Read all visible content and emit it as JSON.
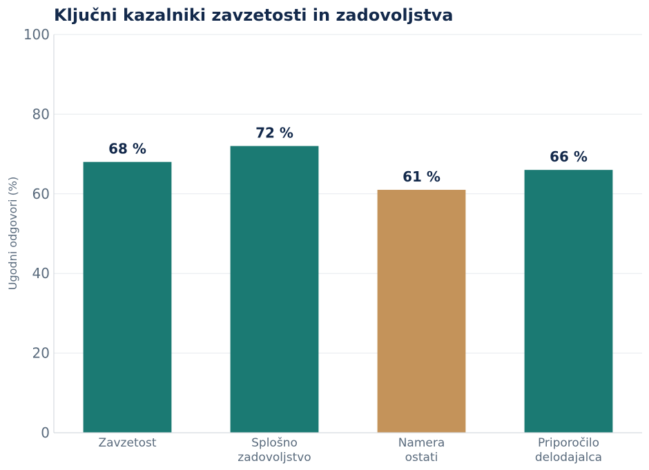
{
  "chart_data": {
    "type": "bar",
    "title": "Ključni kazalniki zavzetosti in zadovoljstva",
    "xlabel": "",
    "ylabel": "Ugodni odgovori (%)",
    "ylim": [
      0,
      100
    ],
    "yticks": [
      0,
      20,
      40,
      60,
      80,
      100
    ],
    "grid": true,
    "categories": [
      [
        "Zavzetost"
      ],
      [
        "Splošno",
        "zadovoljstvo"
      ],
      [
        "Namera",
        "ostati"
      ],
      [
        "Priporočilo",
        "delodajalca"
      ]
    ],
    "values": [
      68,
      72,
      61,
      66
    ],
    "data_labels": [
      "68 %",
      "72 %",
      "61 %",
      "66 %"
    ],
    "colors": [
      "#1b7a73",
      "#1b7a73",
      "#c4935a",
      "#1b7a73"
    ]
  }
}
